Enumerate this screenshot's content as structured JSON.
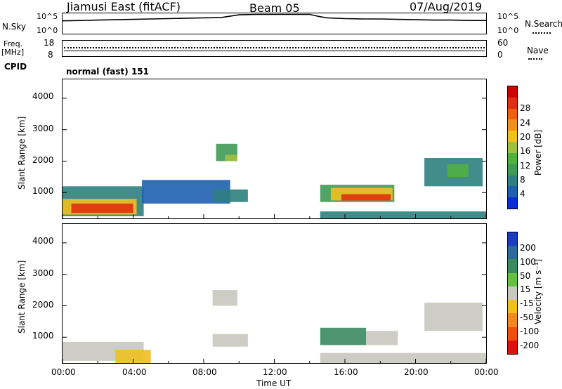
{
  "header": {
    "station": "Jiamusi East (fitACF)",
    "beam": "Beam 05",
    "date": "07/Aug/2019"
  },
  "noise_panel": {
    "left_label": "N.Sky",
    "right_label": "N.Search",
    "left_tick_top": "10^5",
    "left_tick_bottom": "10^0",
    "right_tick_top": "10^5",
    "right_tick_bottom": "10^0"
  },
  "freq_panel": {
    "left_label_1": "Freq.",
    "left_label_2": "[MHz]",
    "right_label": "Nave",
    "left_tick_top": "18",
    "left_tick_bottom": "8",
    "right_tick_top": "60",
    "right_tick_bottom": "0"
  },
  "cpid_panel": {
    "label": "CPID",
    "mode": "normal (fast) 151"
  },
  "x_axis": {
    "label": "Time UT",
    "ticks": [
      "00:00",
      "04:00",
      "08:00",
      "12:00",
      "16:00",
      "20:00",
      "00:00"
    ]
  },
  "power_panel": {
    "ylabel": "Slant Range [km]",
    "yticks": [
      "1000",
      "2000",
      "3000",
      "4000"
    ],
    "colorbar_label": "Power [dB]",
    "colorbar_ticks": [
      "4",
      "8",
      "12",
      "16",
      "20",
      "24",
      "28"
    ],
    "colors": [
      "#0a2bd8",
      "#1f5fb0",
      "#2f7f80",
      "#3f9a55",
      "#50b040",
      "#a0c040",
      "#f0c020",
      "#f09020",
      "#ee6010",
      "#e03010",
      "#d00000"
    ]
  },
  "velocity_panel": {
    "ylabel": "Slant Range [km]",
    "yticks": [
      "1000",
      "2000",
      "3000",
      "4000"
    ],
    "colorbar_label": "Velocity [m s⁻¹]",
    "colorbar_ticks": [
      "200",
      "100",
      "50",
      "15",
      "-15",
      "-50",
      "-100",
      "-200"
    ],
    "colors": [
      "#1a3cc0",
      "#2e6a9a",
      "#3a8a60",
      "#66c040",
      "#c8c8c0",
      "#f0c020",
      "#f08a20",
      "#ee5010",
      "#e01010"
    ]
  },
  "chart_data": [
    {
      "type": "line",
      "title": "N.Sky",
      "x": [
        0,
        1,
        2,
        3,
        4,
        5,
        6,
        7,
        8,
        9,
        10,
        11,
        12,
        13,
        14,
        14.6,
        15,
        16,
        17,
        18,
        19,
        20,
        21,
        22,
        23,
        24
      ],
      "values_log10": [
        3.2,
        3.3,
        3.4,
        3.5,
        3.6,
        3.7,
        3.8,
        3.9,
        4.0,
        4.1,
        4.8,
        4.9,
        4.9,
        4.9,
        4.9,
        4.3,
        4.0,
        3.8,
        3.7,
        3.7,
        3.6,
        3.5,
        3.4,
        3.4,
        3.3,
        3.3
      ],
      "ylim_log10": [
        0,
        5
      ]
    },
    {
      "type": "heatmap",
      "title": "Power [dB]",
      "xlabel": "Time UT",
      "ylabel": "Slant Range [km]",
      "xlim": [
        0,
        24
      ],
      "ylim": [
        180,
        4600
      ],
      "zlim": [
        0,
        30
      ],
      "regions": [
        {
          "x0": 0,
          "x1": 4.6,
          "y0": 250,
          "y1": 1200,
          "db": 6
        },
        {
          "x0": 0,
          "x1": 4.2,
          "y0": 300,
          "y1": 800,
          "db": 18
        },
        {
          "x0": 0.5,
          "x1": 4.0,
          "y0": 350,
          "y1": 650,
          "db": 26
        },
        {
          "x0": 4.5,
          "x1": 9.5,
          "y0": 650,
          "y1": 1400,
          "db": 4
        },
        {
          "x0": 8.7,
          "x1": 9.9,
          "y0": 2000,
          "y1": 2550,
          "db": 10
        },
        {
          "x0": 9.2,
          "x1": 9.9,
          "y0": 2000,
          "y1": 2200,
          "db": 14
        },
        {
          "x0": 8.5,
          "x1": 10.5,
          "y0": 700,
          "y1": 1100,
          "db": 6
        },
        {
          "x0": 14.6,
          "x1": 18.8,
          "y0": 700,
          "y1": 1250,
          "db": 10
        },
        {
          "x0": 15.2,
          "x1": 18.7,
          "y0": 750,
          "y1": 1150,
          "db": 18
        },
        {
          "x0": 15.8,
          "x1": 18.6,
          "y0": 750,
          "y1": 950,
          "db": 26
        },
        {
          "x0": 14.6,
          "x1": 24,
          "y0": 180,
          "y1": 400,
          "db": 6
        },
        {
          "x0": 20.5,
          "x1": 23.8,
          "y0": 1200,
          "y1": 2100,
          "db": 6
        },
        {
          "x0": 21.8,
          "x1": 23.0,
          "y0": 1500,
          "y1": 1900,
          "db": 12
        }
      ]
    },
    {
      "type": "heatmap",
      "title": "Velocity [m s⁻¹]",
      "xlabel": "Time UT",
      "ylabel": "Slant Range [km]",
      "xlim": [
        0,
        24
      ],
      "ylim": [
        180,
        4600
      ],
      "zlim": [
        -250,
        250
      ],
      "regions": [
        {
          "x0": 0,
          "x1": 4.6,
          "y0": 250,
          "y1": 850,
          "v": 0
        },
        {
          "x0": 3.0,
          "x1": 5.0,
          "y0": 180,
          "y1": 600,
          "v": -40
        },
        {
          "x0": 8.5,
          "x1": 9.9,
          "y0": 2000,
          "y1": 2500,
          "v": 0
        },
        {
          "x0": 8.5,
          "x1": 10.5,
          "y0": 700,
          "y1": 1100,
          "v": 0
        },
        {
          "x0": 14.6,
          "x1": 17.2,
          "y0": 750,
          "y1": 1300,
          "v": 40
        },
        {
          "x0": 17.2,
          "x1": 19.0,
          "y0": 750,
          "y1": 1200,
          "v": 0
        },
        {
          "x0": 14.6,
          "x1": 24,
          "y0": 180,
          "y1": 500,
          "v": 0
        },
        {
          "x0": 20.5,
          "x1": 23.8,
          "y0": 1200,
          "y1": 2100,
          "v": 0
        }
      ]
    }
  ]
}
